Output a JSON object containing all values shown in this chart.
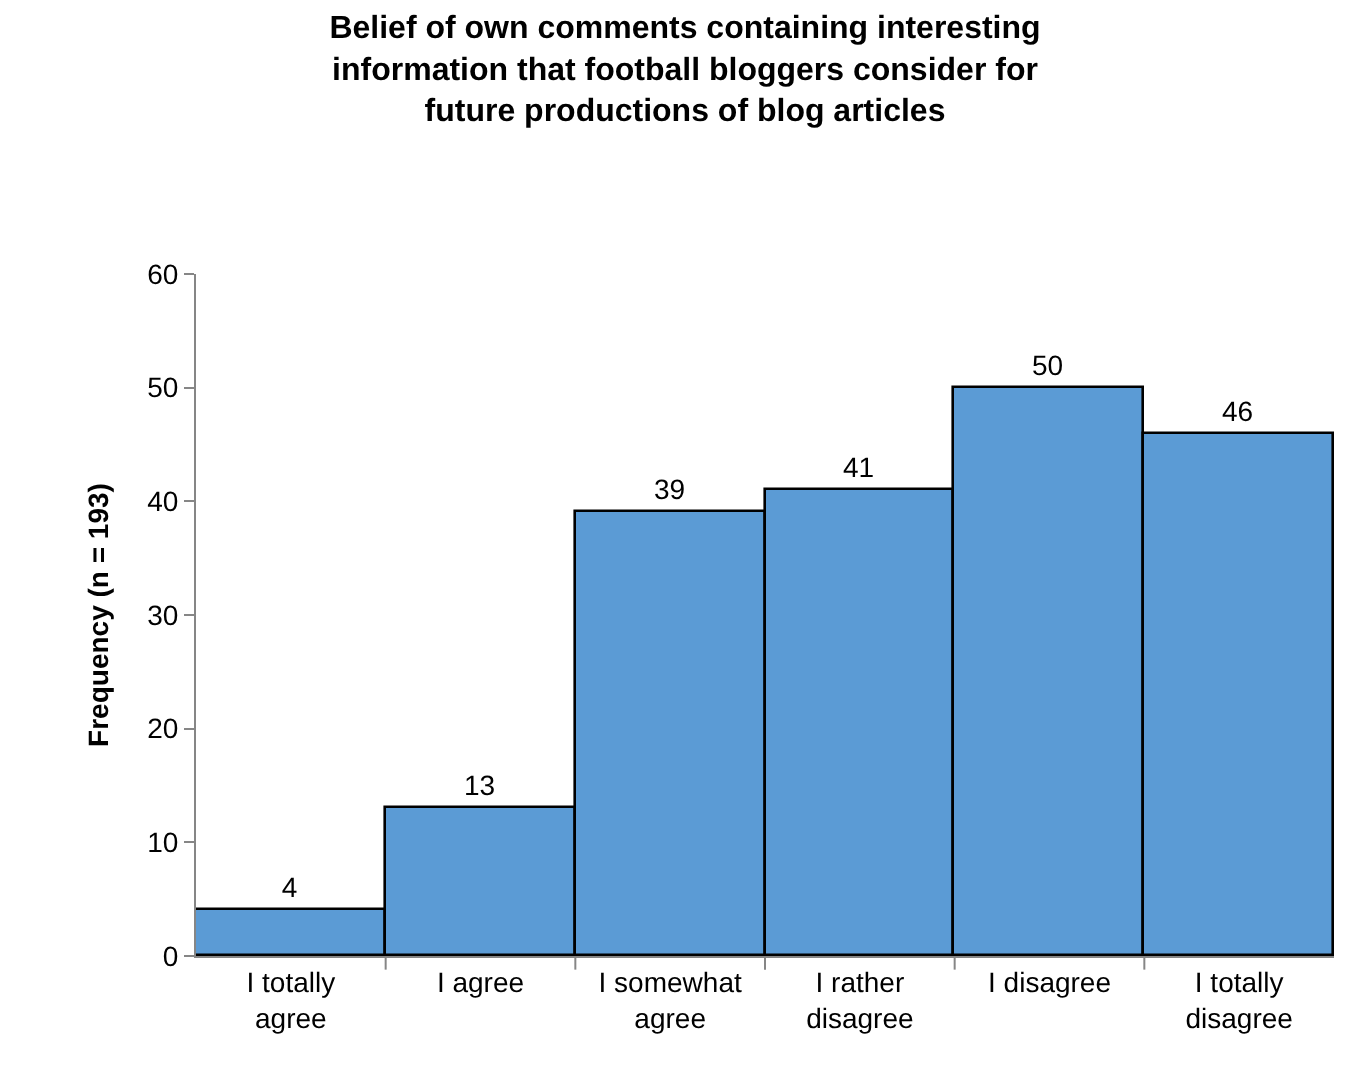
{
  "chart_data": {
    "type": "bar",
    "title": "Belief of own comments containing interesting information that football bloggers consider for future productions of blog articles",
    "ylabel": "Frequency (n = 193)",
    "categories": [
      "I totally agree",
      "I agree",
      "I somewhat agree",
      "I rather disagree",
      "I disagree",
      "I totally disagree"
    ],
    "values": [
      4,
      13,
      39,
      41,
      50,
      46
    ],
    "color": "#5b9bd5",
    "ylim": [
      0,
      60
    ],
    "yticks": [
      0,
      10,
      20,
      30,
      40,
      50,
      60
    ],
    "grid": false,
    "data_labels": true
  }
}
